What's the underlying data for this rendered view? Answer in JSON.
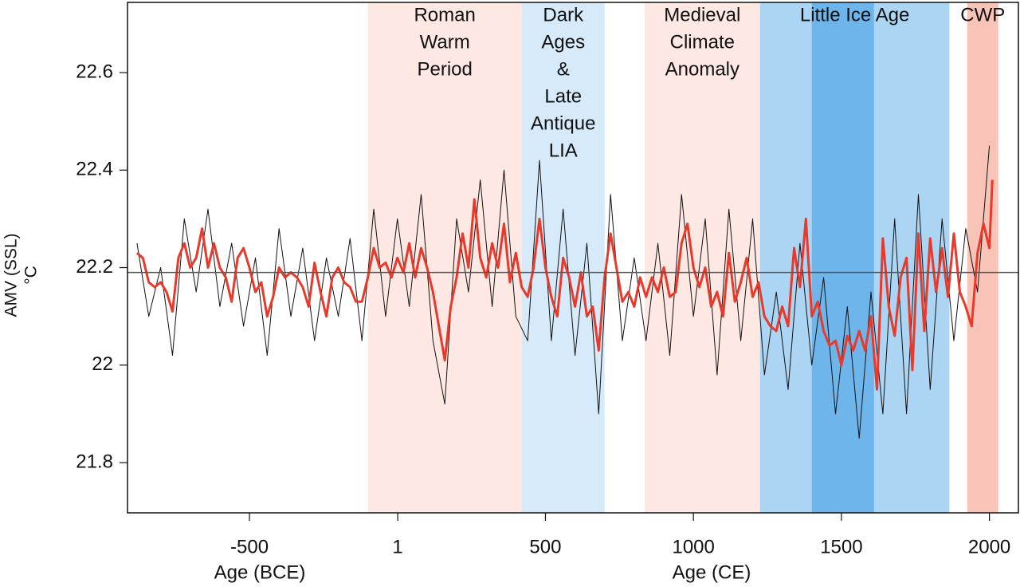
{
  "chart_data": {
    "type": "line",
    "x_label_bce": "Age (BCE)",
    "x_label_ce": "Age (CE)",
    "y_label": [
      "AMV (SSL)",
      "°C"
    ],
    "xlim": [
      -912,
      2098
    ],
    "ylim": [
      21.697,
      22.744
    ],
    "xticks": [
      -500,
      1,
      500,
      1000,
      1500,
      2000
    ],
    "yticks": [
      21.8,
      22,
      22.2,
      22.4,
      22.6
    ],
    "reference_line": {
      "value": 22.19,
      "color": "#555555"
    },
    "periods": [
      {
        "label": [
          "Roman",
          "Warm",
          "Period"
        ],
        "start": -100,
        "end": 420,
        "color": "#fde8e3"
      },
      {
        "label": [
          "Dark",
          "Ages",
          "&",
          "Late",
          "Antique",
          "LIA"
        ],
        "start": 420,
        "end": 700,
        "color": "#d7eaf9"
      },
      {
        "label": [
          "Medieval",
          "Climate",
          "Anomaly"
        ],
        "start": 835,
        "end": 1225,
        "color": "#fde8e3"
      },
      {
        "label": [
          "Little Ice Age"
        ],
        "start": 1225,
        "end": 1865,
        "color": "#acd5f3"
      },
      {
        "start": 1400,
        "end": 1610,
        "color": "#6db5ea"
      },
      {
        "label": [
          "CWP"
        ],
        "start": 1925,
        "end": 2030,
        "color": "#f9c4b8"
      }
    ],
    "series": [
      {
        "color": "#111111",
        "width": 1,
        "x": [
          -880,
          -840,
          -800,
          -760,
          -720,
          -680,
          -640,
          -600,
          -560,
          -520,
          -480,
          -440,
          -400,
          -360,
          -320,
          -280,
          -240,
          -200,
          -160,
          -120,
          -80,
          -40,
          0,
          40,
          80,
          120,
          160,
          200,
          240,
          280,
          320,
          360,
          400,
          440,
          480,
          520,
          560,
          600,
          640,
          680,
          720,
          760,
          800,
          840,
          880,
          920,
          960,
          1000,
          1040,
          1080,
          1120,
          1160,
          1200,
          1240,
          1280,
          1320,
          1360,
          1400,
          1440,
          1480,
          1520,
          1560,
          1600,
          1640,
          1680,
          1720,
          1760,
          1800,
          1840,
          1880,
          1920,
          1960,
          2000
        ],
        "values": [
          22.25,
          22.1,
          22.2,
          22.02,
          22.3,
          22.15,
          22.32,
          22.12,
          22.25,
          22.08,
          22.22,
          22.02,
          22.28,
          22.1,
          22.24,
          22.05,
          22.22,
          22.1,
          22.26,
          22.05,
          22.32,
          22.1,
          22.3,
          22.12,
          22.35,
          22.05,
          21.92,
          22.3,
          22.15,
          22.38,
          22.12,
          22.4,
          22.1,
          22.05,
          22.42,
          22.05,
          22.32,
          22.02,
          22.25,
          21.9,
          22.35,
          22.05,
          22.22,
          22.05,
          22.25,
          22.02,
          22.35,
          22.1,
          22.3,
          21.98,
          22.32,
          22.05,
          22.3,
          21.98,
          22.15,
          21.95,
          22.25,
          22.0,
          22.18,
          21.9,
          22.12,
          21.85,
          22.15,
          21.9,
          22.3,
          21.9,
          22.35,
          21.95,
          22.3,
          22.05,
          22.28,
          22.15,
          22.45
        ]
      },
      {
        "color": "#e8392b",
        "width": 3,
        "x": [
          -880,
          -860,
          -840,
          -820,
          -800,
          -780,
          -760,
          -740,
          -720,
          -700,
          -680,
          -660,
          -640,
          -620,
          -600,
          -580,
          -560,
          -540,
          -520,
          -500,
          -480,
          -460,
          -440,
          -420,
          -400,
          -380,
          -360,
          -340,
          -320,
          -300,
          -280,
          -260,
          -240,
          -220,
          -200,
          -180,
          -160,
          -140,
          -120,
          -100,
          -80,
          -60,
          -40,
          -20,
          0,
          20,
          40,
          60,
          80,
          100,
          120,
          140,
          160,
          180,
          200,
          220,
          240,
          260,
          280,
          300,
          320,
          340,
          360,
          380,
          400,
          420,
          440,
          460,
          480,
          500,
          520,
          540,
          560,
          580,
          600,
          620,
          640,
          660,
          680,
          700,
          720,
          740,
          760,
          780,
          800,
          820,
          840,
          860,
          880,
          900,
          920,
          940,
          960,
          980,
          1000,
          1020,
          1040,
          1060,
          1080,
          1100,
          1120,
          1140,
          1160,
          1180,
          1200,
          1220,
          1240,
          1260,
          1280,
          1300,
          1320,
          1340,
          1360,
          1380,
          1400,
          1420,
          1440,
          1460,
          1480,
          1500,
          1520,
          1540,
          1560,
          1580,
          1600,
          1620,
          1640,
          1660,
          1680,
          1700,
          1720,
          1740,
          1760,
          1780,
          1800,
          1820,
          1840,
          1860,
          1880,
          1900,
          1920,
          1940,
          1960,
          1980,
          2000,
          2010
        ],
        "values": [
          22.23,
          22.22,
          22.17,
          22.16,
          22.17,
          22.15,
          22.11,
          22.22,
          22.25,
          22.2,
          22.22,
          22.28,
          22.2,
          22.25,
          22.2,
          22.18,
          22.13,
          22.22,
          22.24,
          22.2,
          22.15,
          22.17,
          22.1,
          22.14,
          22.2,
          22.18,
          22.19,
          22.18,
          22.16,
          22.12,
          22.21,
          22.15,
          22.1,
          22.18,
          22.2,
          22.17,
          22.16,
          22.13,
          22.13,
          22.18,
          22.24,
          22.2,
          22.21,
          22.18,
          22.22,
          22.19,
          22.25,
          22.18,
          22.24,
          22.2,
          22.15,
          22.08,
          22.01,
          22.12,
          22.18,
          22.27,
          22.2,
          22.34,
          22.22,
          22.18,
          22.25,
          22.2,
          22.29,
          22.17,
          22.23,
          22.16,
          22.14,
          22.2,
          22.3,
          22.2,
          22.14,
          22.1,
          22.22,
          22.18,
          22.12,
          22.19,
          22.1,
          22.12,
          22.03,
          22.18,
          22.27,
          22.2,
          22.13,
          22.15,
          22.12,
          22.18,
          22.14,
          22.18,
          22.15,
          22.2,
          22.14,
          22.15,
          22.25,
          22.29,
          22.2,
          22.16,
          22.2,
          22.12,
          22.15,
          22.1,
          22.23,
          22.13,
          22.17,
          22.22,
          22.14,
          22.17,
          22.1,
          22.08,
          22.07,
          22.12,
          22.08,
          22.24,
          22.16,
          22.3,
          22.1,
          22.13,
          22.07,
          22.04,
          22.05,
          22.0,
          22.06,
          22.03,
          22.07,
          22.03,
          22.1,
          21.95,
          22.26,
          22.12,
          22.06,
          22.18,
          22.22,
          21.99,
          22.27,
          22.07,
          22.26,
          22.15,
          22.24,
          22.14,
          22.27,
          22.15,
          22.12,
          22.08,
          22.23,
          22.29,
          22.24,
          22.38
        ]
      }
    ]
  }
}
